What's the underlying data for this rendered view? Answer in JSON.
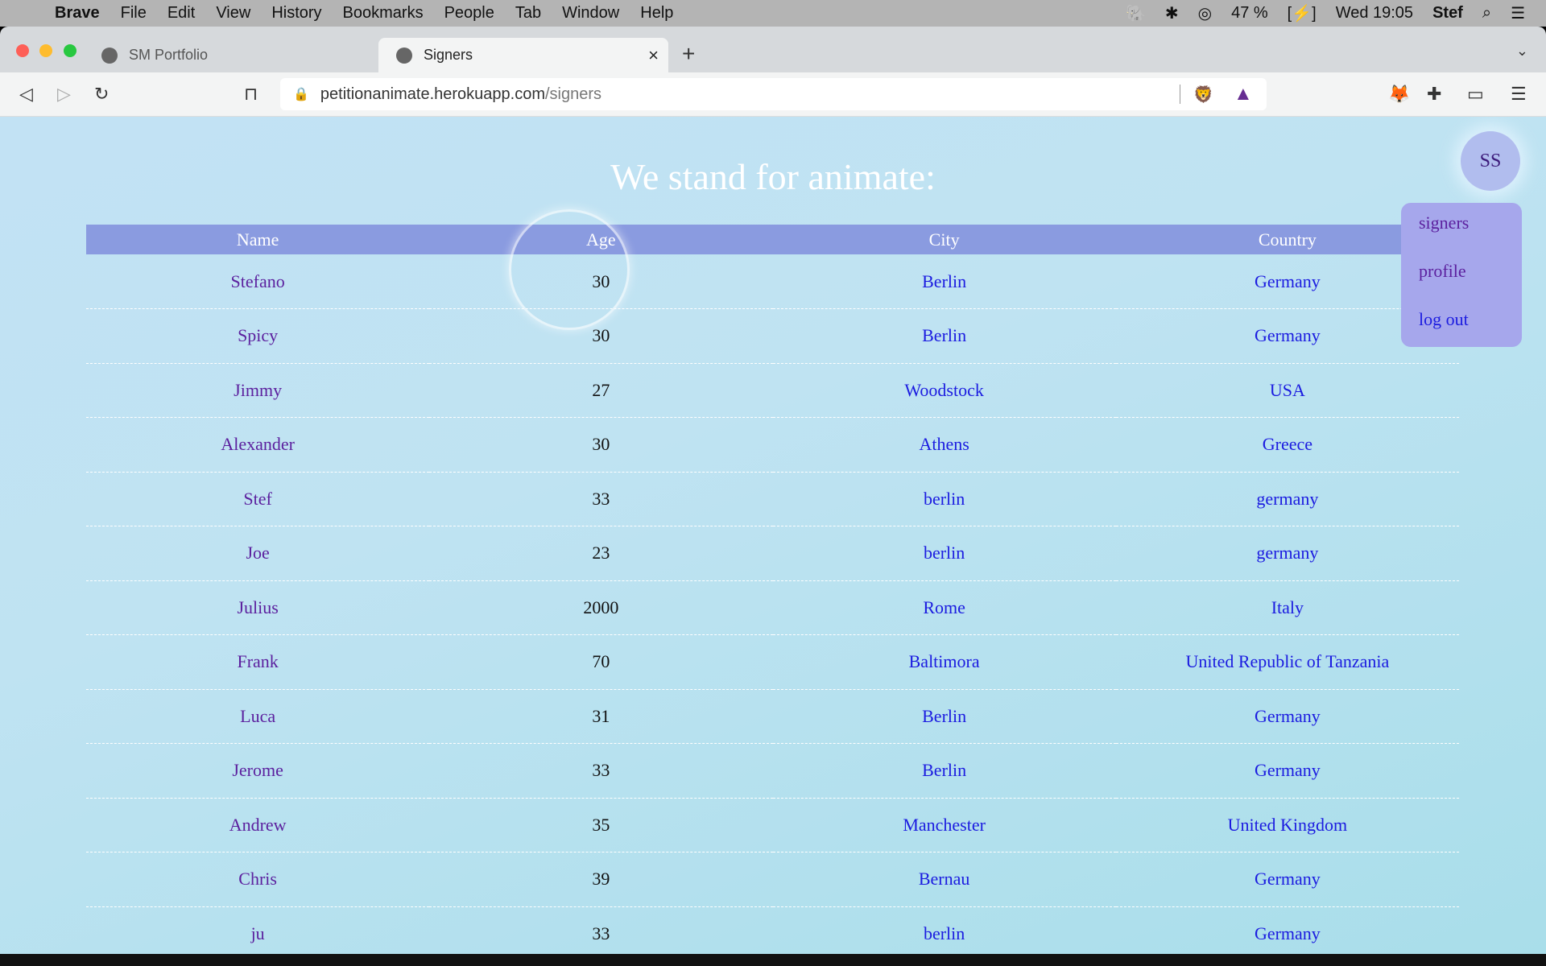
{
  "menubar": {
    "app": "Brave",
    "items": [
      "File",
      "Edit",
      "View",
      "History",
      "Bookmarks",
      "People",
      "Tab",
      "Window",
      "Help"
    ],
    "battery": "47 %",
    "clock": "Wed 19:05",
    "user": "Stef"
  },
  "tabs": [
    {
      "title": "SM Portfolio"
    },
    {
      "title": "Signers",
      "active": true
    }
  ],
  "toolbar": {
    "url_host": "petitionanimate.herokuapp.com",
    "url_path": "/signers"
  },
  "page": {
    "title": "We stand for animate:",
    "avatar_initials": "SS",
    "menu": [
      {
        "label": "signers",
        "color": "#5b1f9e"
      },
      {
        "label": "profile",
        "color": "#5b1f9e"
      },
      {
        "label": "log out",
        "color": "#1b1be0"
      }
    ],
    "columns": [
      "Name",
      "Age",
      "City",
      "Country"
    ],
    "rows": [
      [
        "Stefano",
        "30",
        "Berlin",
        "Germany"
      ],
      [
        "Spicy",
        "30",
        "Berlin",
        "Germany"
      ],
      [
        "Jimmy",
        "27",
        "Woodstock",
        "USA"
      ],
      [
        "Alexander",
        "30",
        "Athens",
        "Greece"
      ],
      [
        "Stef",
        "33",
        "berlin",
        "germany"
      ],
      [
        "Joe",
        "23",
        "berlin",
        "germany"
      ],
      [
        "Julius",
        "2000",
        "Rome",
        "Italy"
      ],
      [
        "Frank",
        "70",
        "Baltimora",
        "United Republic of Tanzania"
      ],
      [
        "Luca",
        "31",
        "Berlin",
        "Germany"
      ],
      [
        "Jerome",
        "33",
        "Berlin",
        "Germany"
      ],
      [
        "Andrew",
        "35",
        "Manchester",
        "United Kingdom"
      ],
      [
        "Chris",
        "39",
        "Bernau",
        "Germany"
      ],
      [
        "ju",
        "33",
        "berlin",
        "Germany"
      ]
    ]
  },
  "colors": {
    "header": "#8a9be0",
    "name": "#5b1f9e",
    "link": "#1b1be0"
  }
}
